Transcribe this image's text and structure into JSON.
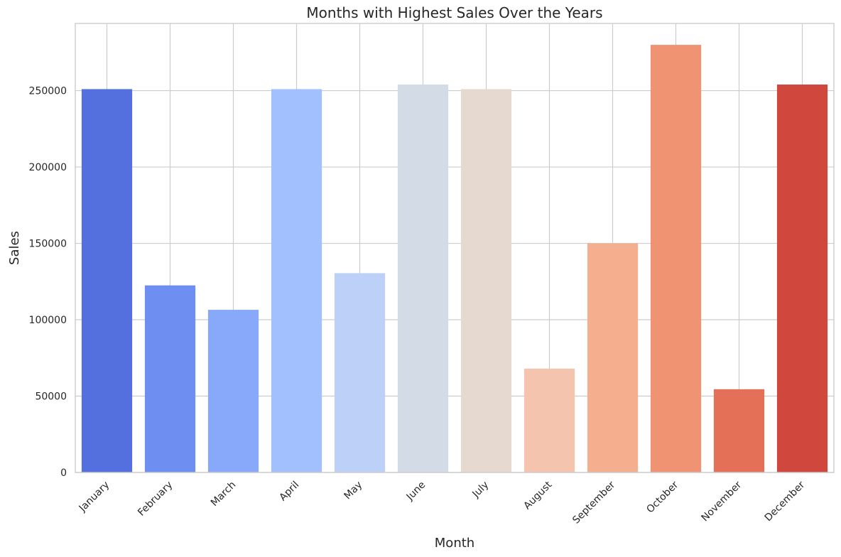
{
  "chart_data": {
    "type": "bar",
    "title": "Months with Highest Sales Over the Years",
    "xlabel": "Month",
    "ylabel": "Sales",
    "categories": [
      "January",
      "February",
      "March",
      "April",
      "May",
      "June",
      "July",
      "August",
      "September",
      "October",
      "November",
      "December"
    ],
    "values": [
      251000,
      122500,
      106500,
      251000,
      130500,
      254000,
      251000,
      68000,
      150000,
      280000,
      54500,
      254000
    ],
    "colors": [
      "#5470de",
      "#6e8ff1",
      "#88a9fa",
      "#a2c0fd",
      "#bdd1f8",
      "#d3dbe6",
      "#e6d9cf",
      "#f5c4ae",
      "#f5ae8e",
      "#f09373",
      "#e57058",
      "#d0473d"
    ],
    "ylim": [
      0,
      294000
    ],
    "yticks": [
      0,
      50000,
      100000,
      150000,
      200000,
      250000
    ],
    "ytick_labels": [
      "0",
      "50000",
      "100000",
      "150000",
      "200000",
      "250000"
    ],
    "grid": true,
    "legend": "none"
  }
}
